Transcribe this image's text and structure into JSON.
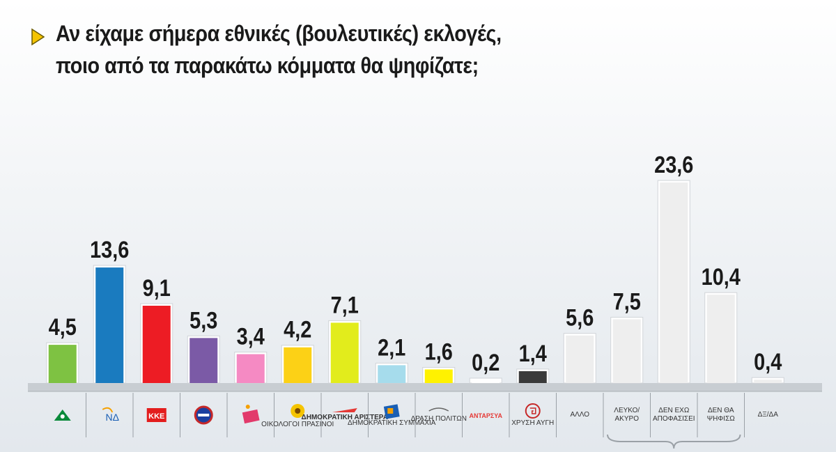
{
  "title": {
    "line1": "Αν είχαμε σήμερα εθνικές (βουλευτικές) εκλογές,",
    "line2": "ποιο από τα παρακάτω κόμματα θα ψηφίζατε;"
  },
  "colors": {
    "arrow": "#f5c400",
    "baseline": "#c8cdd2",
    "separator": "#9aa0a6"
  },
  "chart_data": {
    "type": "bar",
    "categories": [
      "ΠΑΣΟΚ",
      "ΝΔ",
      "ΚΚΕ",
      "ΛΑΟΣ",
      "ΣΥΡΙΖΑ",
      "ΟΙΚΟΛΟΓΟΙ ΠΡΑΣΙΝΟΙ",
      "ΔΗΜΟΚΡΑΤΙΚΗ ΑΡΙΣΤΕΡΑ",
      "ΔΗΜΟΚΡΑΤΙΚΗ ΣΥΜΜΑΧΙΑ",
      "ΔΡΑΣΗ ΠΟΛΙΤΩΝ",
      "ΑΝΤΑΡΣΥΑ",
      "ΧΡΥΣΗ ΑΥΓΗ",
      "ΑΛΛΟ",
      "ΛΕΥΚΟ/ ΑΚΥΡΟ",
      "ΔΕΝ ΕΧΩ ΑΠΟΦΑΣΙΣΕΙ",
      "ΔΕΝ ΘΑ ΨΗΦΙΣΩ",
      "ΔΞ/ΔΑ"
    ],
    "values": [
      4.5,
      13.6,
      9.1,
      5.3,
      3.4,
      4.2,
      7.1,
      2.1,
      1.6,
      0.2,
      1.4,
      5.6,
      7.5,
      23.6,
      10.4,
      0.4
    ],
    "value_labels": [
      "4,5",
      "13,6",
      "9,1",
      "5,3",
      "3,4",
      "4,2",
      "7,1",
      "2,1",
      "1,6",
      "0,2",
      "1,4",
      "5,6",
      "7,5",
      "23,6",
      "10,4",
      "0,4"
    ],
    "bar_colors": [
      "#7ec242",
      "#1a7bbf",
      "#ed1c24",
      "#7b5aa6",
      "#f58ac3",
      "#fcd116",
      "#e2ec1c",
      "#a6dcec",
      "#fff200",
      "#ffffff",
      "#3a3a3a",
      "#eeeeee",
      "#eeeeee",
      "#eeeeee",
      "#eeeeee",
      "#eeeeee"
    ],
    "axis_labels": [
      "",
      "ΝΔ",
      "ΚΚΕ",
      "",
      "",
      "ΟΙΚΟΛΟΓΟΙ ΠΡΑΣΙΝΟΙ",
      "ΔΗΜΟΚΡΑΤΙΚΗ ΑΡΙΣΤΕΡΑ",
      "ΔΗΜΟΚΡΑΤΙΚΗ ΣΥΜΜΑΧΙΑ",
      "ΔΡΑΣΗ ΠΟΛΙΤΩΝ",
      "ΑΝΤΑΡΣΥΑ",
      "ΧΡΥΣΗ ΑΥΓΗ",
      "ΑΛΛΟ",
      "ΛΕΥΚΟ/ ΑΚΥΡΟ",
      "ΔΕΝ ΕΧΩ ΑΠΟΦΑΣΙΣΕΙ",
      "ΔΕΝ ΘΑ ΨΗΦΙΣΩ",
      "ΔΞ/ΔΑ"
    ],
    "icons": [
      "pasok-logo-icon",
      "nd-logo-icon",
      "kke-logo-icon",
      "laos-logo-icon",
      "syriza-logo-icon",
      "sunflower-icon",
      "dimar-logo-icon",
      "dimsy-logo-icon",
      "drasi-logo-icon",
      "antarsya-logo-icon",
      "meander-icon",
      "",
      "",
      "",
      "",
      ""
    ],
    "ylim": [
      0,
      25
    ],
    "grid": false,
    "legend": "none"
  }
}
